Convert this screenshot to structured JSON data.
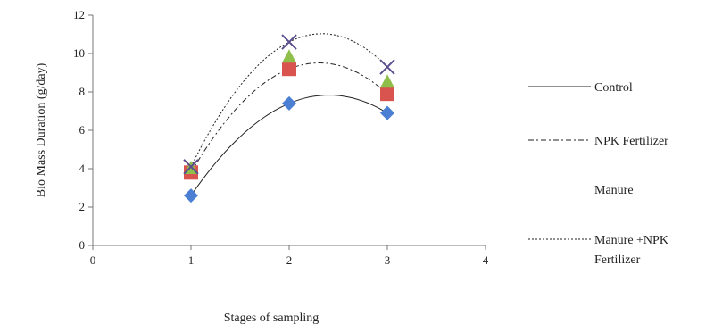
{
  "chart_data": {
    "type": "scatter",
    "xlabel": "Stages of sampling",
    "ylabel": "Bio Mass Duration (g/day)",
    "xlim": [
      0,
      4
    ],
    "ylim": [
      0,
      12
    ],
    "xticks": [
      "0",
      "1",
      "2",
      "3",
      "4"
    ],
    "yticks": [
      "0",
      "2",
      "4",
      "6",
      "8",
      "10",
      "12"
    ],
    "grid": false,
    "legend_position": "right",
    "x": [
      1,
      2,
      3
    ],
    "series": [
      {
        "name": "Control",
        "values": [
          2.6,
          7.4,
          6.9
        ],
        "marker": "diamond",
        "color": "#4a7fd4",
        "line": "solid"
      },
      {
        "name": "NPK Fertilizer",
        "values": [
          3.8,
          9.2,
          7.9
        ],
        "marker": "square",
        "color": "#d9534f",
        "line": "dash-dot"
      },
      {
        "name": "Manure",
        "values": [
          4.0,
          9.8,
          8.5
        ],
        "marker": "triangle",
        "color": "#8fbf4a",
        "line": "none"
      },
      {
        "name": "Manure +NPK Fertilizer",
        "values": [
          4.1,
          10.6,
          9.3
        ],
        "marker": "x",
        "color": "#5a4e8c",
        "line": "dotted"
      }
    ]
  }
}
